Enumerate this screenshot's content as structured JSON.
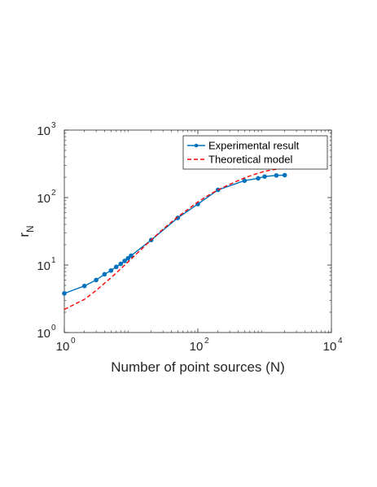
{
  "chart_data": {
    "type": "line",
    "xscale": "log",
    "yscale": "log",
    "xlim": [
      1,
      10000
    ],
    "ylim": [
      1,
      1000
    ],
    "xlabel": "Number of point sources (N)",
    "ylabel": {
      "base": "r",
      "subscript": "N"
    },
    "x_ticks": [
      {
        "value": 1,
        "base": "10",
        "exp": "0"
      },
      {
        "value": 100,
        "base": "10",
        "exp": "2"
      },
      {
        "value": 10000,
        "base": "10",
        "exp": "4"
      }
    ],
    "y_ticks": [
      {
        "value": 1,
        "base": "10",
        "exp": "0"
      },
      {
        "value": 10,
        "base": "10",
        "exp": "1"
      },
      {
        "value": 100,
        "base": "10",
        "exp": "2"
      },
      {
        "value": 1000,
        "base": "10",
        "exp": "3"
      }
    ],
    "grid": false,
    "legend_position": "top-right",
    "series": [
      {
        "name": "Experimental result",
        "color": "#0072BD",
        "style": "solid-markers",
        "x": [
          1,
          2,
          3,
          4,
          5,
          6,
          7,
          8,
          9,
          10,
          20,
          50,
          100,
          200,
          500,
          800,
          1000,
          1500,
          2000
        ],
        "y": [
          3.8,
          4.9,
          6.0,
          7.3,
          8.3,
          9.4,
          10.4,
          11.5,
          12.6,
          13.8,
          23.5,
          50,
          80,
          130,
          178,
          193,
          205,
          213,
          215
        ]
      },
      {
        "name": "Theoretical model",
        "color": "#FF0000",
        "style": "dashed",
        "x": [
          1,
          2,
          3,
          5,
          7,
          10,
          15,
          20,
          30,
          50,
          70,
          100,
          150,
          200,
          300,
          500,
          700,
          1000,
          1500,
          2000,
          2500
        ],
        "y": [
          2.2,
          3.1,
          4.2,
          6.5,
          8.8,
          12.3,
          18.0,
          23.6,
          34.0,
          52,
          66,
          86,
          111,
          130,
          157,
          196,
          220,
          245,
          264,
          272,
          275
        ]
      }
    ]
  }
}
